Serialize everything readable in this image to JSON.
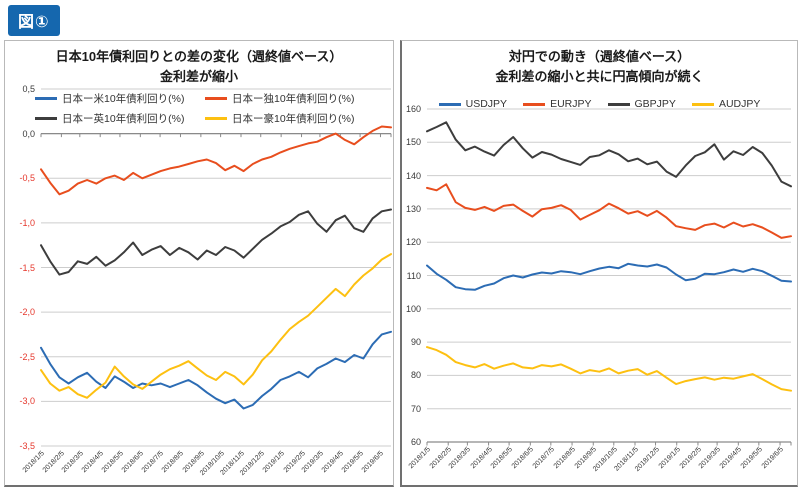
{
  "figure_label": "図①",
  "colors": {
    "badge_blue": "#1567ae",
    "series_blue": "#2c6cb4",
    "series_red": "#e84e1e",
    "series_dark": "#3d3d3d",
    "series_gold": "#fdc011",
    "negative_tick_red": "#e5372c",
    "gridline": "#cdcdcd",
    "axis": "#8a8a8a"
  },
  "chart_data": [
    {
      "type": "line",
      "title_line1": "日本10年債利回りとの差の変化（週終値ベース）",
      "title_line2": "金利差が縮小",
      "legend_position": "top-grid",
      "grid": true,
      "axis_position": "zero",
      "ylim": [
        -3.5,
        0.5
      ],
      "y_ticks": [
        {
          "v": 0.5,
          "label": "0,5"
        },
        {
          "v": 0.0,
          "label": "0,0"
        },
        {
          "v": -0.5,
          "label": "-0,5"
        },
        {
          "v": -1.0,
          "label": "-1,0"
        },
        {
          "v": -1.5,
          "label": "-1,5"
        },
        {
          "v": -2.0,
          "label": "-2,0"
        },
        {
          "v": -2.5,
          "label": "-2,5"
        },
        {
          "v": -3.0,
          "label": "-3,0"
        },
        {
          "v": -3.5,
          "label": "-3,5"
        }
      ],
      "x_start_date": "2018/1/5",
      "x_step_days": 14,
      "x_tick_labels": [
        "2018/1/5",
        "2018/2/5",
        "2018/3/5",
        "2018/4/5",
        "2018/5/5",
        "2018/6/5",
        "2018/7/5",
        "2018/8/5",
        "2018/9/5",
        "2018/10/5",
        "2018/11/5",
        "2018/12/5",
        "2019/1/5",
        "2019/2/5",
        "2019/3/5",
        "2019/4/5",
        "2019/5/5",
        "2019/6/5"
      ],
      "series": [
        {
          "name": "日本ー米10年債利回り(%)",
          "color_key": "series_blue",
          "values": [
            -2.4,
            -2.58,
            -2.73,
            -2.8,
            -2.73,
            -2.68,
            -2.78,
            -2.85,
            -2.72,
            -2.78,
            -2.85,
            -2.8,
            -2.82,
            -2.8,
            -2.84,
            -2.8,
            -2.76,
            -2.82,
            -2.9,
            -2.97,
            -3.02,
            -2.98,
            -3.08,
            -3.04,
            -2.94,
            -2.86,
            -2.76,
            -2.72,
            -2.67,
            -2.73,
            -2.63,
            -2.58,
            -2.52,
            -2.56,
            -2.48,
            -2.52,
            -2.36,
            -2.25,
            -2.22
          ]
        },
        {
          "name": "日本ー独10年債利回り(%)",
          "color_key": "series_red",
          "values": [
            -0.4,
            -0.55,
            -0.68,
            -0.64,
            -0.56,
            -0.52,
            -0.56,
            -0.5,
            -0.47,
            -0.52,
            -0.44,
            -0.5,
            -0.46,
            -0.42,
            -0.39,
            -0.37,
            -0.34,
            -0.31,
            -0.29,
            -0.33,
            -0.41,
            -0.36,
            -0.42,
            -0.34,
            -0.29,
            -0.26,
            -0.21,
            -0.17,
            -0.14,
            -0.11,
            -0.09,
            -0.04,
            0.0,
            -0.07,
            -0.12,
            -0.04,
            0.03,
            0.08,
            0.07
          ]
        },
        {
          "name": "日本ー英10年債利回り(%)",
          "color_key": "series_dark",
          "values": [
            -1.25,
            -1.43,
            -1.58,
            -1.55,
            -1.43,
            -1.46,
            -1.38,
            -1.48,
            -1.42,
            -1.33,
            -1.22,
            -1.36,
            -1.3,
            -1.26,
            -1.36,
            -1.28,
            -1.33,
            -1.41,
            -1.31,
            -1.36,
            -1.27,
            -1.31,
            -1.39,
            -1.29,
            -1.19,
            -1.12,
            -1.04,
            -0.99,
            -0.91,
            -0.87,
            -1.01,
            -1.1,
            -0.97,
            -0.92,
            -1.06,
            -1.1,
            -0.95,
            -0.87,
            -0.85
          ]
        },
        {
          "name": "日本ー豪10年債利回り(%)",
          "color_key": "series_gold",
          "values": [
            -2.65,
            -2.8,
            -2.88,
            -2.84,
            -2.92,
            -2.96,
            -2.87,
            -2.79,
            -2.61,
            -2.72,
            -2.81,
            -2.86,
            -2.78,
            -2.7,
            -2.64,
            -2.6,
            -2.55,
            -2.63,
            -2.71,
            -2.76,
            -2.67,
            -2.72,
            -2.81,
            -2.7,
            -2.54,
            -2.44,
            -2.31,
            -2.19,
            -2.11,
            -2.04,
            -1.94,
            -1.84,
            -1.74,
            -1.82,
            -1.69,
            -1.59,
            -1.51,
            -1.41,
            -1.35
          ]
        }
      ]
    },
    {
      "type": "line",
      "title_line1": "対円での動き（週終値ベース）",
      "title_line2": "金利差の縮小と共に円高傾向が続く",
      "legend_position": "top-row",
      "grid": true,
      "axis_position": "bottom",
      "ylim": [
        60,
        160
      ],
      "y_ticks": [
        {
          "v": 160,
          "label": "160"
        },
        {
          "v": 150,
          "label": "150"
        },
        {
          "v": 140,
          "label": "140"
        },
        {
          "v": 130,
          "label": "130"
        },
        {
          "v": 120,
          "label": "120"
        },
        {
          "v": 110,
          "label": "110"
        },
        {
          "v": 100,
          "label": "100"
        },
        {
          "v": 90,
          "label": "90"
        },
        {
          "v": 80,
          "label": "80"
        },
        {
          "v": 70,
          "label": "70"
        },
        {
          "v": 60,
          "label": "60"
        }
      ],
      "x_start_date": "2018/1/5",
      "x_step_days": 14,
      "x_tick_labels": [
        "2018/1/5",
        "2018/2/5",
        "2018/3/5",
        "2018/4/5",
        "2018/5/5",
        "2018/6/5",
        "2018/7/5",
        "2018/8/5",
        "2018/9/5",
        "2018/10/5",
        "2018/11/5",
        "2018/12/5",
        "2019/1/5",
        "2019/2/5",
        "2019/3/5",
        "2019/4/5",
        "2019/5/5",
        "2019/6/5"
      ],
      "series": [
        {
          "name": "USDJPY",
          "color_key": "series_blue",
          "values": [
            113.0,
            110.5,
            108.7,
            106.5,
            105.9,
            105.7,
            106.9,
            107.6,
            109.2,
            110.0,
            109.4,
            110.3,
            110.9,
            110.6,
            111.3,
            111.0,
            110.4,
            111.3,
            112.1,
            112.6,
            112.2,
            113.5,
            113.0,
            112.7,
            113.3,
            112.4,
            110.3,
            108.6,
            109.0,
            110.5,
            110.4,
            111.0,
            111.8,
            111.1,
            112.0,
            111.3,
            109.9,
            108.4,
            108.2
          ]
        },
        {
          "name": "EURJPY",
          "color_key": "series_red",
          "values": [
            136.3,
            135.6,
            137.4,
            132.0,
            130.3,
            129.7,
            130.6,
            129.4,
            130.9,
            131.3,
            129.4,
            127.7,
            129.9,
            130.3,
            131.1,
            129.7,
            126.8,
            128.2,
            129.6,
            131.6,
            130.2,
            128.6,
            129.3,
            127.9,
            129.4,
            127.4,
            124.8,
            124.2,
            123.7,
            125.1,
            125.6,
            124.4,
            125.9,
            124.7,
            125.4,
            124.4,
            122.9,
            121.3,
            121.8
          ]
        },
        {
          "name": "GBPJPY",
          "color_key": "series_dark",
          "values": [
            153.3,
            154.6,
            156.0,
            150.8,
            147.6,
            148.7,
            147.2,
            146.0,
            149.2,
            151.6,
            148.2,
            145.4,
            147.1,
            146.3,
            145.0,
            144.1,
            143.2,
            145.6,
            146.1,
            147.6,
            146.4,
            144.3,
            145.1,
            143.4,
            144.2,
            141.2,
            139.6,
            143.0,
            145.9,
            147.0,
            149.4,
            144.8,
            147.3,
            146.2,
            148.6,
            146.8,
            143.0,
            138.2,
            136.8
          ]
        },
        {
          "name": "AUDJPY",
          "color_key": "series_gold",
          "values": [
            88.5,
            87.6,
            86.2,
            84.0,
            83.1,
            82.4,
            83.4,
            82.0,
            82.9,
            83.6,
            82.4,
            82.1,
            83.1,
            82.7,
            83.3,
            82.0,
            80.6,
            81.6,
            81.1,
            82.1,
            80.6,
            81.4,
            81.9,
            80.2,
            81.3,
            79.3,
            77.4,
            78.3,
            78.9,
            79.4,
            78.7,
            79.3,
            79.0,
            79.7,
            80.4,
            78.9,
            77.3,
            75.9,
            75.4
          ]
        }
      ]
    }
  ]
}
